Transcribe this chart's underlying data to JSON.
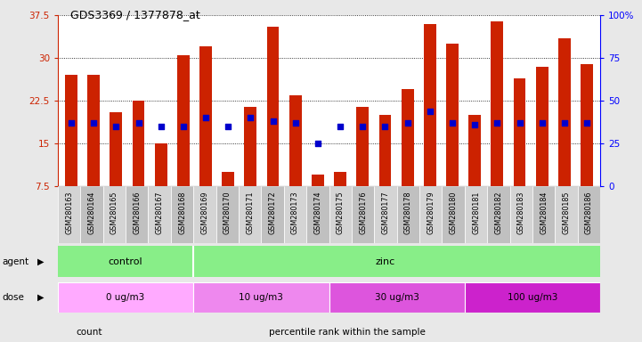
{
  "title": "GDS3369 / 1377878_at",
  "samples": [
    "GSM280163",
    "GSM280164",
    "GSM280165",
    "GSM280166",
    "GSM280167",
    "GSM280168",
    "GSM280169",
    "GSM280170",
    "GSM280171",
    "GSM280172",
    "GSM280173",
    "GSM280174",
    "GSM280175",
    "GSM280176",
    "GSM280177",
    "GSM280178",
    "GSM280179",
    "GSM280180",
    "GSM280181",
    "GSM280182",
    "GSM280183",
    "GSM280184",
    "GSM280185",
    "GSM280186"
  ],
  "counts": [
    27.0,
    27.0,
    20.5,
    22.5,
    15.0,
    30.5,
    32.0,
    10.0,
    21.5,
    35.5,
    23.5,
    9.5,
    10.0,
    21.5,
    20.0,
    24.5,
    36.0,
    32.5,
    20.0,
    36.5,
    26.5,
    28.5,
    33.5,
    29.0
  ],
  "percentile_ranks": [
    37,
    37,
    35,
    37,
    35,
    35,
    40,
    35,
    40,
    38,
    37,
    25,
    35,
    35,
    35,
    37,
    44,
    37,
    36,
    37,
    37,
    37,
    37,
    37
  ],
  "ylim_left": [
    7.5,
    37.5
  ],
  "ylim_right": [
    0,
    100
  ],
  "yticks_left": [
    7.5,
    15.0,
    22.5,
    30.0,
    37.5
  ],
  "yticks_right": [
    0,
    25,
    50,
    75,
    100
  ],
  "ytick_labels_left": [
    "7.5",
    "15",
    "22.5",
    "30",
    "37.5"
  ],
  "ytick_labels_right": [
    "0",
    "25",
    "50",
    "75",
    "100%"
  ],
  "bar_color": "#cc2200",
  "dot_color": "#0000cc",
  "bg_color": "#e8e8e8",
  "plot_bg_color": "#ffffff",
  "xtick_bg_even": "#d4d4d4",
  "xtick_bg_odd": "#c0c0c0",
  "agent_green": "#88ee88",
  "dose_colors": [
    "#ffaaff",
    "#ee88ee",
    "#dd55dd",
    "#cc22cc"
  ],
  "dose_labels": [
    "0 ug/m3",
    "10 ug/m3",
    "30 ug/m3",
    "100 ug/m3"
  ],
  "dose_starts": [
    0,
    6,
    12,
    18
  ],
  "dose_ends": [
    5,
    11,
    17,
    23
  ],
  "legend_labels": [
    "count",
    "percentile rank within the sample"
  ],
  "legend_colors": [
    "#cc2200",
    "#0000cc"
  ]
}
